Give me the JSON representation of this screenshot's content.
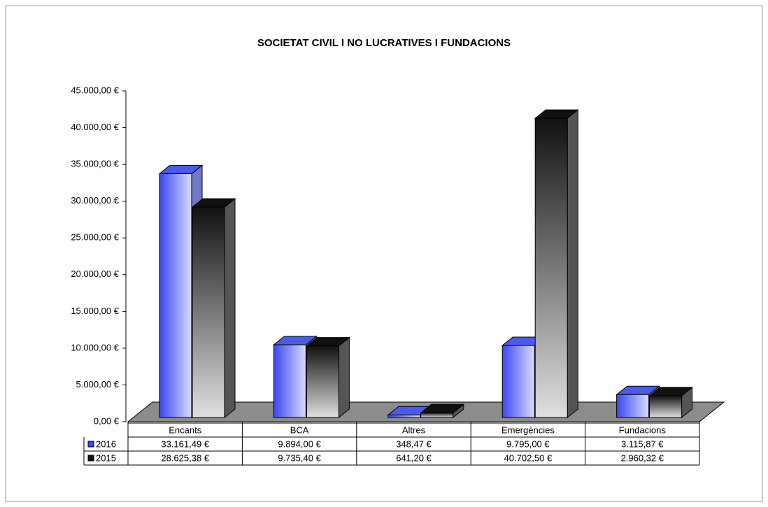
{
  "chart_data": {
    "type": "bar3d",
    "title": "SOCIETAT CIVIL I NO LUCRATIVES I FUNDACIONS",
    "categories": [
      "Encants",
      "BCA",
      "Altres",
      "Emergències",
      "Fundacions"
    ],
    "series": [
      {
        "name": "2016",
        "color": "#3a48f0",
        "values": [
          33161.49,
          9894.0,
          348.47,
          9795.0,
          3115.87
        ],
        "value_labels": [
          "33.161,49 €",
          "9.894,00 €",
          "348,47 €",
          "9.795,00 €",
          "3.115,87 €"
        ]
      },
      {
        "name": "2015",
        "color": "#111111",
        "values": [
          28625.38,
          9735.4,
          641.2,
          40702.5,
          2960.32
        ],
        "value_labels": [
          "28.625,38 €",
          "9.735,40 €",
          "641,20 €",
          "40.702,50 €",
          "2.960,32 €"
        ]
      }
    ],
    "ylim": [
      0,
      45000
    ],
    "yticks": [
      {
        "value": 0,
        "label": "0,00 €"
      },
      {
        "value": 5000,
        "label": "5.000,00 €"
      },
      {
        "value": 10000,
        "label": "10.000,00 €"
      },
      {
        "value": 15000,
        "label": "15.000,00 €"
      },
      {
        "value": 20000,
        "label": "20.000,00 €"
      },
      {
        "value": 25000,
        "label": "25.000,00 €"
      },
      {
        "value": 30000,
        "label": "30.000,00 €"
      },
      {
        "value": 35000,
        "label": "35.000,00 €"
      },
      {
        "value": 40000,
        "label": "40.000,00 €"
      },
      {
        "value": 45000,
        "label": "45.000,00 €"
      }
    ]
  }
}
